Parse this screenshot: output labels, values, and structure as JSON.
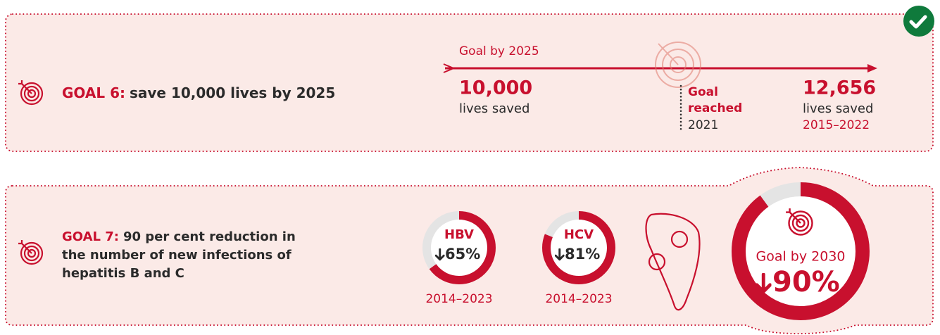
{
  "goal6": {
    "label": "GOAL 6:",
    "text": "save 10,000 lives by 2025",
    "target_label": "Goal by 2025",
    "target_value": "10,000",
    "target_unit": "lives saved",
    "reached": [
      "Goal",
      "reached"
    ],
    "reached_year": "2021",
    "result_value": "12,656",
    "result_unit": "lives saved",
    "result_period": "2015–2022"
  },
  "goal7": {
    "label": "GOAL 7:",
    "text": [
      "90 per cent reduction in",
      "the number of new infections of",
      "hepatitis B and C"
    ],
    "rings": [
      {
        "name": "HBV",
        "value": 65,
        "label": "65%",
        "period": "2014–2023"
      },
      {
        "name": "HCV",
        "value": 81,
        "label": "81%",
        "period": "2014–2023"
      }
    ],
    "goal": {
      "name": "Goal by 2030",
      "value": 90,
      "label": "90%"
    }
  }
}
